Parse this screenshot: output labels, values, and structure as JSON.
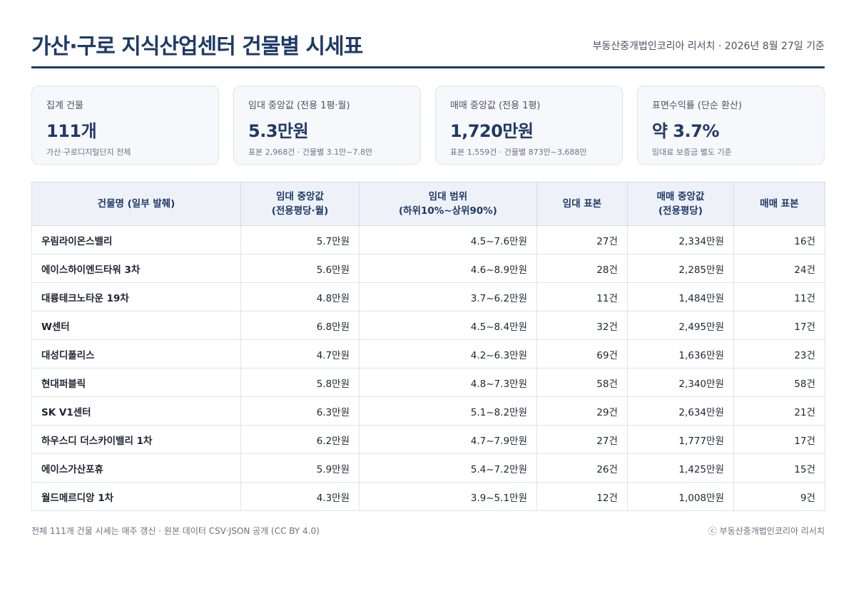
{
  "header": {
    "title": "가산·구로 지식산업센터 건물별 시세표",
    "source": "부동산중개법인코리아 리서치 · 2026년 8월 27일 기준"
  },
  "cards": [
    {
      "label": "집계 건물",
      "value": "111개",
      "note": "가산·구로디지털단지 전체"
    },
    {
      "label": "임대 중앙값 (전용 1평·월)",
      "value": "5.3만원",
      "note": "표본 2,968건 · 건물별 3.1만~7.8만"
    },
    {
      "label": "매매 중앙값 (전용 1평)",
      "value": "1,720만원",
      "note": "표본 1,559건 · 건물별 873만~3,688만"
    },
    {
      "label": "표면수익률 (단순 환산)",
      "value": "약 3.7%",
      "note": "임대료 보증금 별도 기준"
    }
  ],
  "table": {
    "headers": {
      "name": "건물명 (일부 발췌)",
      "rent_median_1": "임대 중앙값",
      "rent_median_2": "(전용평당·월)",
      "rent_range_1": "임대 범위",
      "rent_range_2": "(하위10%~상위90%)",
      "rent_samples": "임대 표본",
      "sale_median_1": "매매 중앙값",
      "sale_median_2": "(전용평당)",
      "sale_samples": "매매 표본"
    },
    "rows": [
      {
        "name": "우림라이온스밸리",
        "rent_median": "5.7만원",
        "rent_range": "4.5~7.6만원",
        "rent_samples": "27건",
        "sale_median": "2,334만원",
        "sale_samples": "16건"
      },
      {
        "name": "에이스하이엔드타워 3차",
        "rent_median": "5.6만원",
        "rent_range": "4.6~8.9만원",
        "rent_samples": "28건",
        "sale_median": "2,285만원",
        "sale_samples": "24건"
      },
      {
        "name": "대륭테크노타운 19차",
        "rent_median": "4.8만원",
        "rent_range": "3.7~6.2만원",
        "rent_samples": "11건",
        "sale_median": "1,484만원",
        "sale_samples": "11건"
      },
      {
        "name": "W센터",
        "rent_median": "6.8만원",
        "rent_range": "4.5~8.4만원",
        "rent_samples": "32건",
        "sale_median": "2,495만원",
        "sale_samples": "17건"
      },
      {
        "name": "대성디폴리스",
        "rent_median": "4.7만원",
        "rent_range": "4.2~6.3만원",
        "rent_samples": "69건",
        "sale_median": "1,636만원",
        "sale_samples": "23건"
      },
      {
        "name": "현대퍼블릭",
        "rent_median": "5.8만원",
        "rent_range": "4.8~7.3만원",
        "rent_samples": "58건",
        "sale_median": "2,340만원",
        "sale_samples": "58건"
      },
      {
        "name": "SK V1센터",
        "rent_median": "6.3만원",
        "rent_range": "5.1~8.2만원",
        "rent_samples": "29건",
        "sale_median": "2,634만원",
        "sale_samples": "21건"
      },
      {
        "name": "하우스디 더스카이밸리 1차",
        "rent_median": "6.2만원",
        "rent_range": "4.7~7.9만원",
        "rent_samples": "27건",
        "sale_median": "1,777만원",
        "sale_samples": "17건"
      },
      {
        "name": "에이스가산포휴",
        "rent_median": "5.9만원",
        "rent_range": "5.4~7.2만원",
        "rent_samples": "26건",
        "sale_median": "1,425만원",
        "sale_samples": "15건"
      },
      {
        "name": "월드메르디앙 1차",
        "rent_median": "4.3만원",
        "rent_range": "3.9~5.1만원",
        "rent_samples": "12건",
        "sale_median": "1,008만원",
        "sale_samples": "9건"
      }
    ]
  },
  "footer": {
    "left": "전체 111개 건물 시세는 매주 갱신 · 원본 데이터 CSV·JSON 공개 (CC BY 4.0)",
    "right": "ⓒ 부동산중개법인코리아 리서치"
  }
}
